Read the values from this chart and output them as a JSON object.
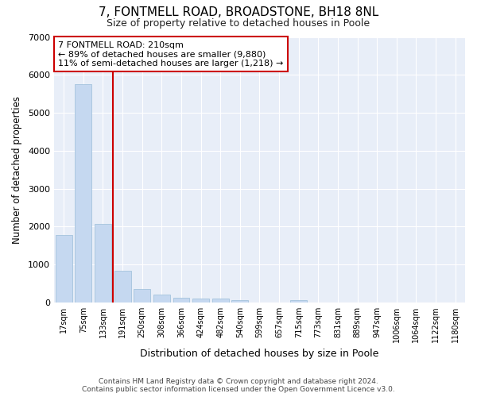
{
  "title": "7, FONTMELL ROAD, BROADSTONE, BH18 8NL",
  "subtitle": "Size of property relative to detached houses in Poole",
  "xlabel": "Distribution of detached houses by size in Poole",
  "ylabel": "Number of detached properties",
  "bar_color": "#c5d8f0",
  "bar_edge_color": "#9bbdd8",
  "categories": [
    "17sqm",
    "75sqm",
    "133sqm",
    "191sqm",
    "250sqm",
    "308sqm",
    "366sqm",
    "424sqm",
    "482sqm",
    "540sqm",
    "599sqm",
    "657sqm",
    "715sqm",
    "773sqm",
    "831sqm",
    "889sqm",
    "947sqm",
    "1006sqm",
    "1064sqm",
    "1122sqm",
    "1180sqm"
  ],
  "values": [
    1780,
    5750,
    2060,
    830,
    350,
    200,
    125,
    110,
    100,
    65,
    0,
    0,
    65,
    0,
    0,
    0,
    0,
    0,
    0,
    0,
    0
  ],
  "ylim": [
    0,
    7000
  ],
  "yticks": [
    0,
    1000,
    2000,
    3000,
    4000,
    5000,
    6000,
    7000
  ],
  "property_bin_index": 3,
  "annotation_text_line1": "7 FONTMELL ROAD: 210sqm",
  "annotation_text_line2": "← 89% of detached houses are smaller (9,880)",
  "annotation_text_line3": "11% of semi-detached houses are larger (1,218) →",
  "footer_line1": "Contains HM Land Registry data © Crown copyright and database right 2024.",
  "footer_line2": "Contains public sector information licensed under the Open Government Licence v3.0.",
  "fig_bg_color": "#ffffff",
  "plot_bg_color": "#e8eef8",
  "grid_color": "#ffffff",
  "annotation_box_facecolor": "#ffffff",
  "annotation_box_edgecolor": "#cc0000",
  "red_line_color": "#cc0000"
}
